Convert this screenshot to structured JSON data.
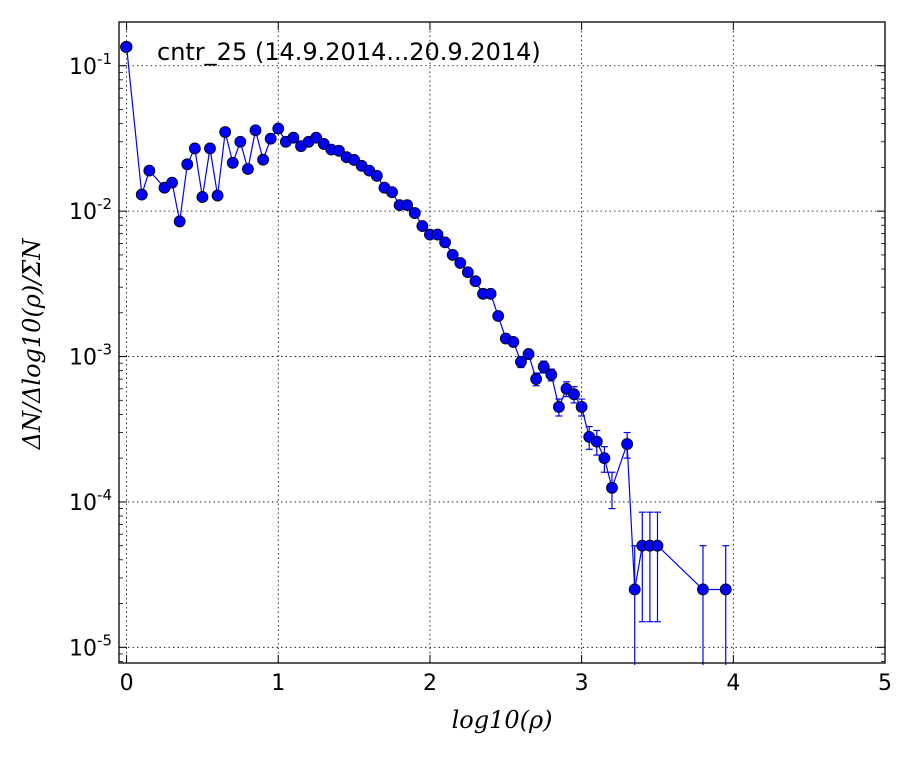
{
  "chart_data": {
    "type": "scatter",
    "title": "",
    "xlabel": "log10(ρ)",
    "ylabel": "ΔN/Δlog10(ρ)/ΣN",
    "xlim": [
      -0.05,
      5
    ],
    "ylim": [
      7.8e-06,
      0.2
    ],
    "yscale": "log",
    "grid": true,
    "legend_position": "top-left",
    "x_ticks": [
      "0",
      "1",
      "2",
      "3",
      "4",
      "5"
    ],
    "y_ticks": [
      {
        "base": "10",
        "exp": "-1"
      },
      {
        "base": "10",
        "exp": "-2"
      },
      {
        "base": "10",
        "exp": "-3"
      },
      {
        "base": "10",
        "exp": "-4"
      },
      {
        "base": "10",
        "exp": "-5"
      }
    ],
    "color": "#0000ff",
    "series": [
      {
        "name": "cntr_25 (14.9.2014...20.9.2014)",
        "x": [
          0,
          0.1,
          0.15,
          0.25,
          0.3,
          0.35,
          0.4,
          0.45,
          0.5,
          0.55,
          0.6,
          0.65,
          0.7,
          0.75,
          0.8,
          0.85,
          0.9,
          0.95,
          1.0,
          1.05,
          1.1,
          1.15,
          1.2,
          1.25,
          1.3,
          1.35,
          1.4,
          1.45,
          1.5,
          1.55,
          1.6,
          1.65,
          1.7,
          1.75,
          1.8,
          1.85,
          1.9,
          1.95,
          2.0,
          2.05,
          2.1,
          2.15,
          2.2,
          2.25,
          2.3,
          2.35,
          2.4,
          2.45,
          2.5,
          2.55,
          2.6,
          2.65,
          2.7,
          2.75,
          2.8,
          2.85,
          2.9,
          2.95,
          3.0,
          3.05,
          3.1,
          3.15,
          3.2,
          3.3,
          3.35,
          3.4,
          3.45,
          3.5,
          3.8,
          3.95
        ],
        "y": [
          0.135,
          0.013,
          0.019,
          0.0145,
          0.0157,
          0.0085,
          0.021,
          0.027,
          0.0125,
          0.027,
          0.0128,
          0.035,
          0.0215,
          0.03,
          0.0195,
          0.036,
          0.0226,
          0.0315,
          0.037,
          0.03,
          0.032,
          0.028,
          0.03,
          0.032,
          0.029,
          0.0265,
          0.026,
          0.0235,
          0.0225,
          0.0205,
          0.019,
          0.0175,
          0.0145,
          0.0135,
          0.011,
          0.011,
          0.0097,
          0.0079,
          0.0069,
          0.0069,
          0.0061,
          0.005,
          0.0044,
          0.0038,
          0.0033,
          0.0027,
          0.0027,
          0.0019,
          0.00133,
          0.00126,
          0.00092,
          0.00104,
          0.0007,
          0.00085,
          0.00075,
          0.00045,
          0.0006,
          0.00055,
          0.00045,
          0.00028,
          0.00026,
          0.0002,
          0.000125,
          0.00025,
          2.5e-05,
          5e-05,
          5e-05,
          5e-05,
          2.5e-05,
          2.5e-05
        ],
        "yerr": [
          0.0005,
          0.0003,
          0.0004,
          0.0003,
          0.0003,
          0.0003,
          0.0004,
          0.0004,
          0.0003,
          0.0004,
          0.0003,
          0.0005,
          0.0004,
          0.0004,
          0.0004,
          0.0005,
          0.0004,
          0.0004,
          0.0005,
          0.0004,
          0.0004,
          0.0004,
          0.0004,
          0.0004,
          0.0004,
          0.0004,
          0.0004,
          0.0003,
          0.0003,
          0.0003,
          0.0003,
          0.0003,
          0.0003,
          0.0003,
          0.0002,
          0.0002,
          0.0002,
          0.0002,
          0.0002,
          0.0002,
          0.0002,
          0.00015,
          0.00015,
          0.00013,
          0.00012,
          0.00011,
          0.00011,
          0.0001,
          9e-05,
          9e-05,
          8e-05,
          8e-05,
          7e-05,
          8e-05,
          7e-05,
          6e-05,
          7e-05,
          7e-05,
          6e-05,
          5e-05,
          5e-05,
          4e-05,
          3.5e-05,
          5e-05,
          2.5e-05,
          3.5e-05,
          3.5e-05,
          3.5e-05,
          2.5e-05,
          2.5e-05
        ]
      }
    ]
  }
}
